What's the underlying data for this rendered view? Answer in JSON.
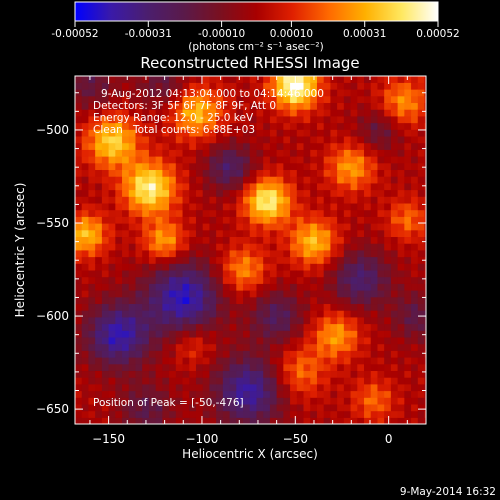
{
  "colorbar": {
    "tick_labels": [
      "-0.00052",
      "-0.00031",
      "-0.00010",
      "0.00010",
      "0.00031",
      "0.00052"
    ],
    "ticks": [
      -0.00052,
      -0.00031,
      -0.0001,
      0.0001,
      0.00031,
      0.00052
    ],
    "range": [
      -0.00052,
      0.00052
    ],
    "unit_label": "(photons cm⁻² s⁻¹ asec⁻²)",
    "colors": [
      "#0000ff",
      "#3a1aa8",
      "#4b1e6e",
      "#5a1a4a",
      "#7a1020",
      "#a80000",
      "#e02000",
      "#ff6a00",
      "#ffb000",
      "#ffe860",
      "#ffffff"
    ]
  },
  "chart_data": {
    "type": "heatmap",
    "title": "Reconstructed RHESSI Image",
    "xlabel": "Heliocentric X (arcsec)",
    "ylabel": "Heliocentric Y (arcsec)",
    "xlim": [
      -168,
      20
    ],
    "ylim": [
      -658,
      -471
    ],
    "x_ticks": [
      -150,
      -100,
      -50,
      0
    ],
    "x_tick_labels": [
      "−150",
      "−100",
      "−50",
      "0"
    ],
    "y_ticks": [
      -500,
      -550,
      -600,
      -650
    ],
    "y_tick_labels": [
      "−500",
      "−550",
      "−600",
      "−650"
    ],
    "value_range": [
      -0.00052,
      0.00052
    ],
    "sources": [
      {
        "x": -50,
        "y": -476,
        "amp": 0.00052,
        "sigma": 9
      },
      {
        "x": -128,
        "y": -531,
        "amp": 0.00045,
        "sigma": 10
      },
      {
        "x": -65,
        "y": -538,
        "amp": 0.00045,
        "sigma": 9
      },
      {
        "x": -148,
        "y": -506,
        "amp": 0.00038,
        "sigma": 10
      },
      {
        "x": -162,
        "y": -556,
        "amp": 0.00034,
        "sigma": 8
      },
      {
        "x": -103,
        "y": -490,
        "amp": 0.00034,
        "sigma": 10
      },
      {
        "x": -40,
        "y": -560,
        "amp": 0.00034,
        "sigma": 9
      },
      {
        "x": -20,
        "y": -520,
        "amp": 0.00028,
        "sigma": 9
      },
      {
        "x": -78,
        "y": -575,
        "amp": 0.00026,
        "sigma": 9
      },
      {
        "x": -28,
        "y": -610,
        "amp": 0.00028,
        "sigma": 9
      },
      {
        "x": -8,
        "y": -645,
        "amp": 0.0002,
        "sigma": 8
      },
      {
        "x": -105,
        "y": -615,
        "amp": 0.00016,
        "sigma": 8
      },
      {
        "x": -48,
        "y": -630,
        "amp": 0.00022,
        "sigma": 10
      },
      {
        "x": 8,
        "y": -485,
        "amp": 0.00026,
        "sigma": 9
      },
      {
        "x": 10,
        "y": -548,
        "amp": 0.0002,
        "sigma": 8
      },
      {
        "x": -120,
        "y": -560,
        "amp": 0.0003,
        "sigma": 8
      },
      {
        "x": -110,
        "y": -590,
        "amp": -0.00044,
        "sigma": 14
      },
      {
        "x": -145,
        "y": -610,
        "amp": -0.00042,
        "sigma": 12
      },
      {
        "x": -75,
        "y": -640,
        "amp": -0.0004,
        "sigma": 13
      },
      {
        "x": -160,
        "y": -475,
        "amp": -0.00018,
        "sigma": 10
      },
      {
        "x": -120,
        "y": -475,
        "amp": -0.00018,
        "sigma": 10
      },
      {
        "x": -85,
        "y": -520,
        "amp": -0.00028,
        "sigma": 9
      },
      {
        "x": -15,
        "y": -580,
        "amp": -0.0003,
        "sigma": 11
      },
      {
        "x": 15,
        "y": -600,
        "amp": -0.0002,
        "sigma": 9
      },
      {
        "x": -60,
        "y": -600,
        "amp": -0.00025,
        "sigma": 10
      },
      {
        "x": -130,
        "y": -650,
        "amp": -0.0002,
        "sigma": 10
      },
      {
        "x": -5,
        "y": -500,
        "amp": -0.00018,
        "sigma": 8
      }
    ],
    "annotations": {
      "line1": "9-Aug-2012 04:13:04.000 to 04:14:46.000",
      "line2": "Detectors: 3F 5F 6F 7F 8F 9F, Att 0",
      "line3": "Energy Range: 12.0 - 25.0 keV",
      "line4_method": "Clean",
      "line4_counts": "Total counts: 6.88E+03",
      "peak": "Position of Peak = [-50,-476]"
    }
  },
  "footer": {
    "timestamp": "9-May-2014 16:32"
  }
}
